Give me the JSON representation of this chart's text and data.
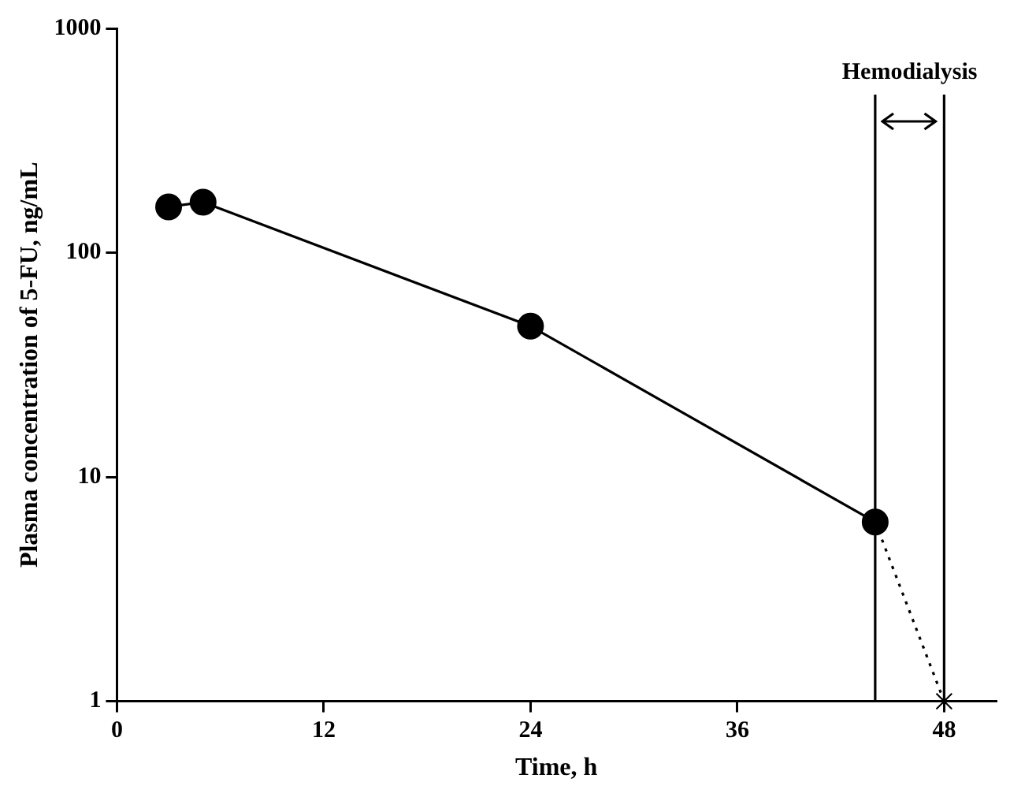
{
  "chart_data": {
    "type": "line",
    "xlabel": "Time, h",
    "ylabel": "Plasma concentration of 5-FU, ng/mL",
    "log": "y",
    "grid": false,
    "legend": false,
    "xlim": [
      0,
      51
    ],
    "xticks": [
      0,
      12,
      24,
      36,
      48
    ],
    "ylim": [
      1,
      1000
    ],
    "yticks": [
      1,
      10,
      100,
      1000
    ],
    "series": [
      {
        "color": "#000000",
        "x": [
          3,
          5,
          24,
          44
        ],
        "values": [
          160,
          168,
          47,
          6.3
        ],
        "marker": "circle",
        "line_style": "solid"
      },
      {
        "color": "#000000",
        "x": [
          44,
          48
        ],
        "values": [
          6.3,
          1
        ],
        "marker": "none",
        "line_style": "dotted"
      },
      {
        "type": "scatter",
        "color": "#000000",
        "x": [
          48
        ],
        "values": [
          1
        ],
        "marker": "cross"
      }
    ],
    "ref_lines": [
      {
        "axis": "x",
        "value": 44
      },
      {
        "axis": "x",
        "value": 48
      }
    ],
    "annotations": [
      "Hemodialysis"
    ]
  }
}
